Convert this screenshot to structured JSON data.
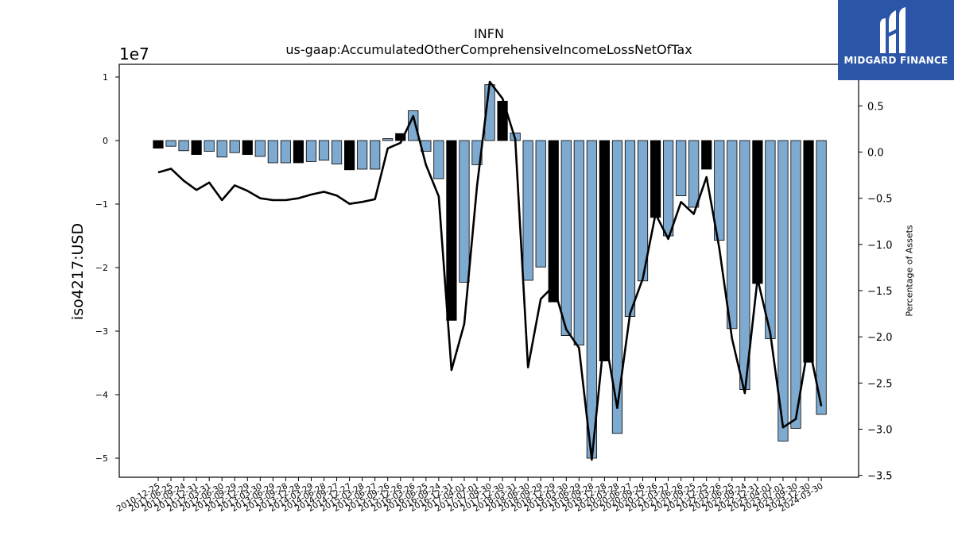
{
  "chart_data": {
    "type": "bar",
    "title": "INFN",
    "subtitle": "us-gaap:AccumulatedOtherComprehensiveIncomeLossNetOfTax",
    "ylabel": "iso4217:USD",
    "y2label": "Percentage of Assets",
    "y_offset_label": "1e7",
    "ylim": [
      -53000000,
      12000000
    ],
    "y2lim": [
      -3.52,
      0.95
    ],
    "y_ticks": [
      1,
      0,
      -1,
      -2,
      -3,
      -4,
      -5
    ],
    "y_tick_scale": 10000000,
    "y2_ticks": [
      0.5,
      0.0,
      -0.5,
      -1.0,
      -1.5,
      -2.0,
      -2.5,
      -3.0,
      -3.5
    ],
    "tick_labels": [
      "2010-12-25",
      "2011-06-25",
      "2011-09-24",
      "2011-12-31",
      "2012-03-31",
      "2012-06-30",
      "2012-09-29",
      "2012-12-29",
      "2013-03-30",
      "2013-06-29",
      "2013-09-28",
      "2013-12-28",
      "2014-03-29",
      "2014-06-28",
      "2014-09-27",
      "2014-12-27",
      "2015-03-28",
      "2015-06-27",
      "2015-09-26",
      "2015-12-26",
      "2016-03-26",
      "2016-06-25",
      "2016-09-24",
      "2016-12-31",
      "2017-04-01",
      "2017-07-01",
      "2017-09-30",
      "2017-12-30",
      "2018-03-31",
      "2018-06-30",
      "2018-09-29",
      "2018-12-29",
      "2019-03-30",
      "2019-06-29",
      "2019-09-28",
      "2019-12-28",
      "2020-03-28",
      "2020-06-27",
      "2020-09-26",
      "2020-12-26",
      "2021-03-27",
      "2021-06-26",
      "2021-09-25",
      "2021-12-25",
      "2022-03-26",
      "2022-06-25",
      "2022-09-24",
      "2022-12-31",
      "2023-04-01",
      "2023-07-01",
      "2023-09-30",
      "2023-12-30",
      "2024-03-30"
    ],
    "series": [
      {
        "kind": "bar",
        "values": [
          -1200000,
          -900000,
          -1600000,
          -2200000,
          -1700000,
          -2600000,
          -1900000,
          -2200000,
          -2500000,
          -3500000,
          -3500000,
          -3500000,
          -3300000,
          -3100000,
          -3700000,
          -4600000,
          -4500000,
          -4500000,
          300000,
          1100000,
          4700000,
          -1700000,
          -6000000,
          -28300000,
          -22300000,
          -3800000,
          8800000,
          6200000,
          1200000,
          -22000000,
          -19900000,
          -25400000,
          -30700000,
          -32200000,
          -50000000,
          -34700000,
          -46100000,
          -27700000,
          -22100000,
          -12100000,
          -15000000,
          -8700000,
          -10500000,
          -4500000,
          -15700000,
          -29600000,
          -39200000,
          -22500000,
          -31200000,
          -47300000,
          -45300000,
          -34900000,
          -43100000
        ],
        "highlight": [
          true,
          false,
          false,
          true,
          false,
          false,
          false,
          true,
          false,
          false,
          false,
          true,
          false,
          false,
          false,
          true,
          false,
          false,
          false,
          true,
          false,
          false,
          false,
          true,
          false,
          false,
          false,
          true,
          false,
          false,
          false,
          true,
          false,
          false,
          false,
          true,
          false,
          false,
          false,
          true,
          false,
          false,
          false,
          true,
          false,
          false,
          false,
          true,
          false,
          false,
          false,
          true,
          false
        ]
      },
      {
        "kind": "line",
        "axis": "right",
        "values": [
          -0.22,
          -0.18,
          -0.31,
          -0.41,
          -0.33,
          -0.52,
          -0.36,
          -0.42,
          -0.5,
          -0.52,
          -0.52,
          -0.5,
          -0.46,
          -0.43,
          -0.47,
          -0.56,
          -0.54,
          -0.51,
          0.04,
          0.1,
          0.39,
          -0.14,
          -0.48,
          -2.36,
          -1.86,
          -0.37,
          0.76,
          0.58,
          0.14,
          -2.33,
          -1.59,
          -1.45,
          -1.92,
          -2.12,
          -3.33,
          -1.97,
          -2.77,
          -1.75,
          -1.37,
          -0.67,
          -0.94,
          -0.54,
          -0.67,
          -0.27,
          -1.04,
          -2.02,
          -2.61,
          -1.37,
          -1.96,
          -2.98,
          -2.89,
          -2.07,
          -2.75
        ]
      }
    ],
    "colors": {
      "bar": "#7eaad0",
      "bar_highlight": "#000000",
      "line": "#000000"
    }
  },
  "logo": {
    "text": "MIDGARD FINANCE",
    "background": "#2b56a8"
  }
}
